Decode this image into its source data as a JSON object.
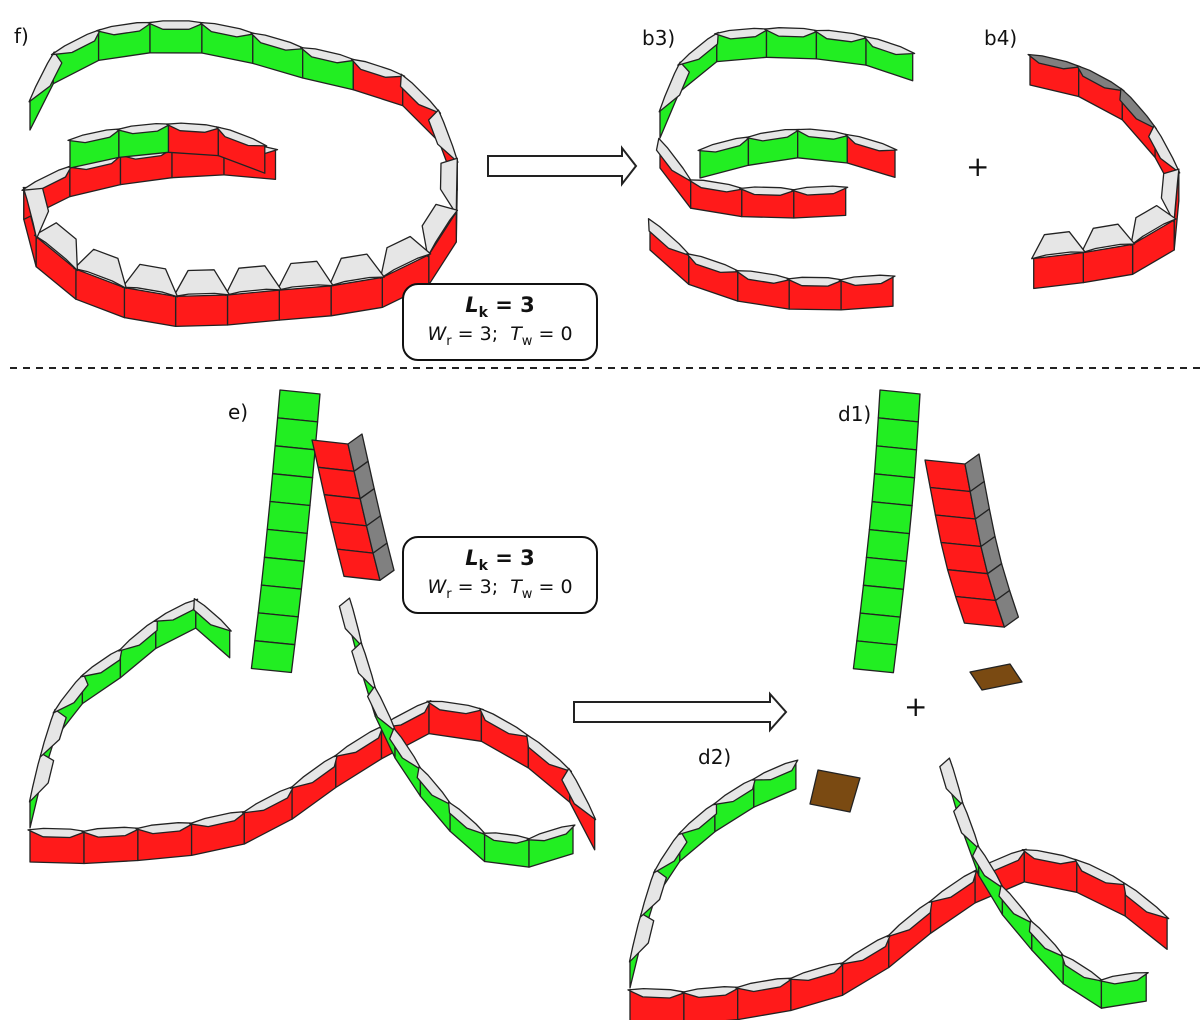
{
  "panels": {
    "f": "f)",
    "b3": "b3)",
    "b4": "b4)",
    "e": "e)",
    "d1": "d1)",
    "d2": "d2)"
  },
  "plus": "+",
  "box_top": {
    "lk_sym": "L",
    "lk_sub": "k",
    "lk_val": "= 3",
    "wr_sym": "W",
    "wr_sub": "r",
    "wr_val": "= 3;",
    "tw_sym": "T",
    "tw_sub": "w",
    "tw_val": "= 0"
  },
  "box_mid": {
    "lk_sym": "L",
    "lk_sub": "k",
    "lk_val": "= 3",
    "wr_sym": "W",
    "wr_sub": "r",
    "wr_val": "= 3;",
    "tw_sym": "T",
    "tw_sub": "w",
    "tw_val": "= 0"
  },
  "colors": {
    "red": "#ff1a1a",
    "green": "#22ee22",
    "light": "#e6e6e6",
    "dark": "#808080",
    "brown": "#7a4a12",
    "stroke": "#222222"
  }
}
